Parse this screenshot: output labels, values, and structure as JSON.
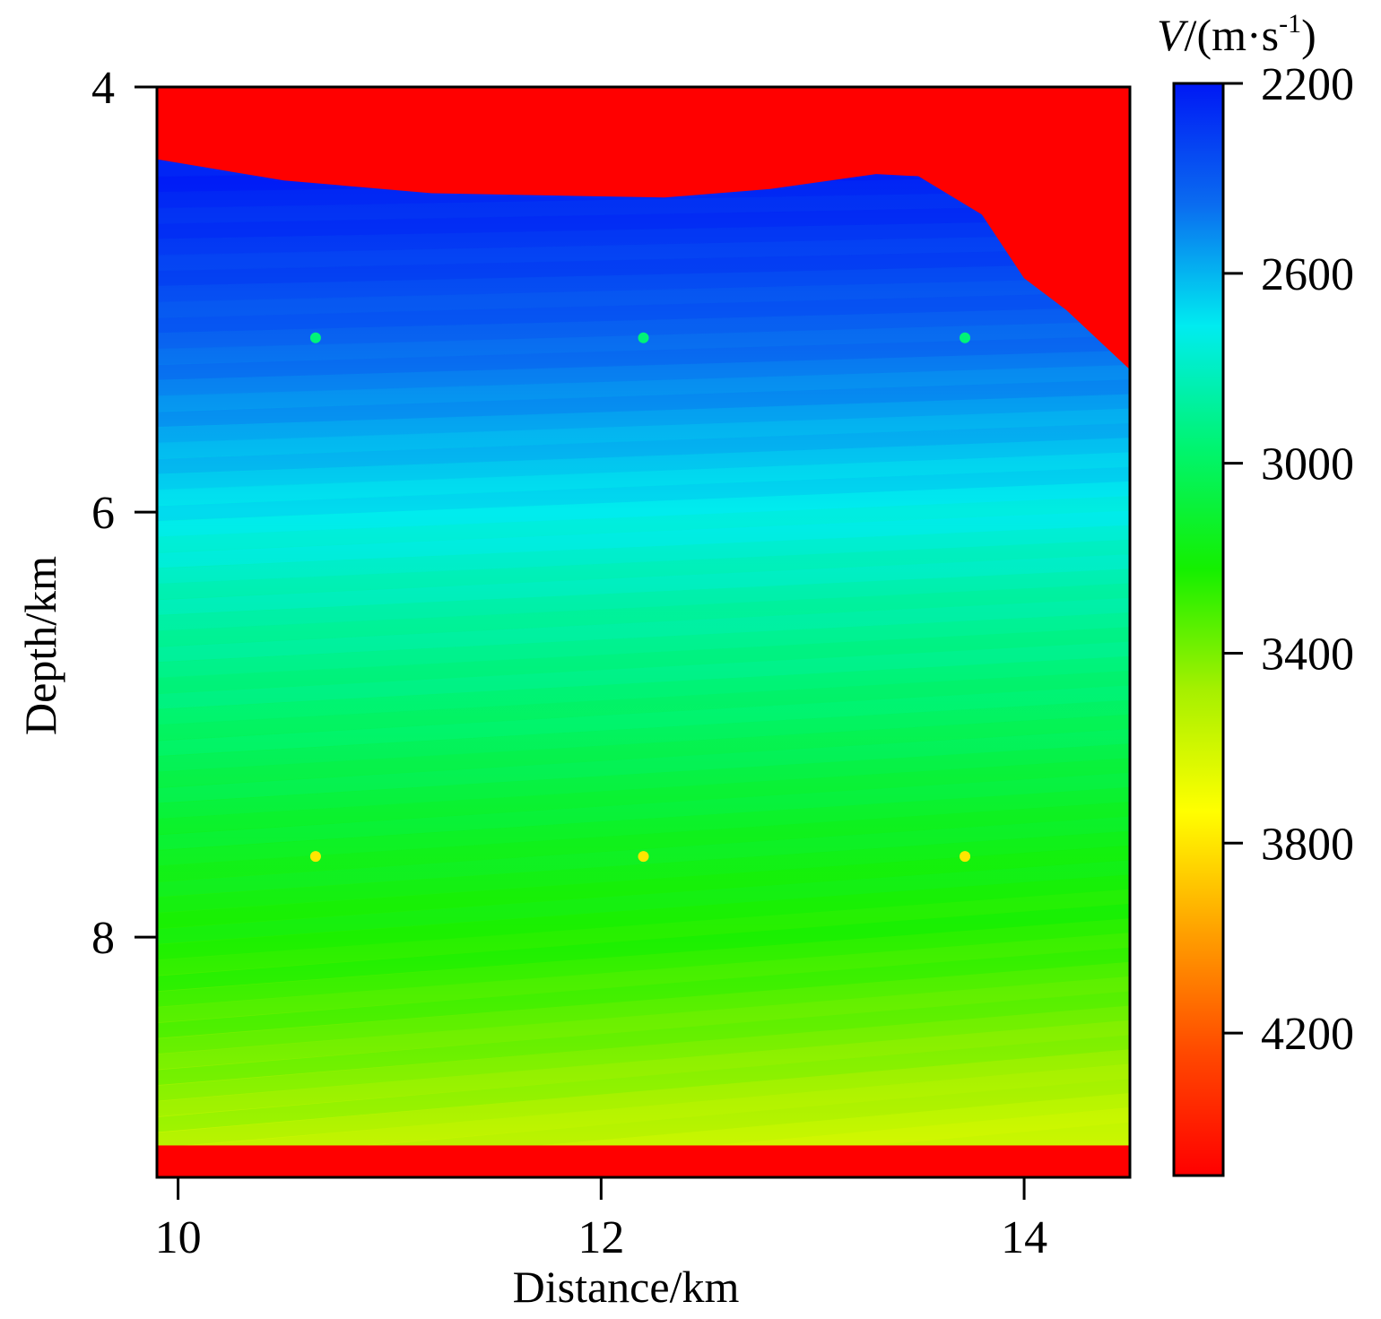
{
  "chart_data": {
    "type": "heatmap",
    "title": "",
    "xlabel": "Distance/km",
    "ylabel": "Depth/km",
    "xlim": [
      9.9,
      14.5
    ],
    "ylim": [
      4.0,
      9.13
    ],
    "x_ticks": [
      10,
      12,
      14
    ],
    "x_tick_labels": [
      "10",
      "12",
      "14"
    ],
    "y_ticks": [
      4,
      6,
      8
    ],
    "y_tick_labels": [
      "4",
      "6",
      "8"
    ],
    "colorbar": {
      "label_prefix": "V",
      "label_suffix": "/(m·s",
      "label_exp": "-1",
      "label_close": ")",
      "range": [
        2200,
        4500
      ],
      "ticks": [
        2200,
        2600,
        3000,
        3400,
        3800,
        4200
      ],
      "tick_labels": [
        "2200",
        "2600",
        "3000",
        "3400",
        "3800",
        "4200"
      ],
      "colors": [
        "#0018f5",
        "#0a6cf0",
        "#00ecf0",
        "#00f470",
        "#14f000",
        "#a6f000",
        "#ffff00",
        "#ffa000",
        "#ff4800",
        "#ff0000"
      ]
    },
    "top_boundary": [
      {
        "distance": 9.9,
        "depth": 4.34
      },
      {
        "distance": 10.5,
        "depth": 4.44
      },
      {
        "distance": 11.2,
        "depth": 4.5
      },
      {
        "distance": 12.3,
        "depth": 4.52
      },
      {
        "distance": 12.8,
        "depth": 4.48
      },
      {
        "distance": 13.3,
        "depth": 4.41
      },
      {
        "distance": 13.5,
        "depth": 4.42
      },
      {
        "distance": 13.8,
        "depth": 4.6
      },
      {
        "distance": 14.0,
        "depth": 4.9
      },
      {
        "distance": 14.2,
        "depth": 5.05
      },
      {
        "distance": 14.5,
        "depth": 5.33
      }
    ],
    "bottom_layer": {
      "depth_top": 8.98,
      "depth_bottom": 9.13,
      "velocity": 4500
    },
    "upper_layer_velocity": 4500,
    "velocity_profile": [
      {
        "depth": 4.4,
        "velocity": 2220
      },
      {
        "depth": 4.8,
        "velocity": 2320
      },
      {
        "depth": 5.2,
        "velocity": 2440
      },
      {
        "depth": 5.6,
        "velocity": 2580
      },
      {
        "depth": 6.0,
        "velocity": 2720
      },
      {
        "depth": 6.4,
        "velocity": 2850
      },
      {
        "depth": 7.0,
        "velocity": 3000
      },
      {
        "depth": 7.5,
        "velocity": 3140
      },
      {
        "depth": 8.0,
        "velocity": 3250
      },
      {
        "depth": 8.5,
        "velocity": 3400
      },
      {
        "depth": 9.0,
        "velocity": 3600
      }
    ],
    "point_anomalies": [
      {
        "distance": 10.65,
        "depth": 5.18,
        "velocity": 2950
      },
      {
        "distance": 12.2,
        "depth": 5.18,
        "velocity": 2950
      },
      {
        "distance": 13.72,
        "depth": 5.18,
        "velocity": 2950
      },
      {
        "distance": 10.65,
        "depth": 7.62,
        "velocity": 3800
      },
      {
        "distance": 12.2,
        "depth": 7.62,
        "velocity": 3800
      },
      {
        "distance": 13.72,
        "depth": 7.62,
        "velocity": 3800
      }
    ]
  }
}
